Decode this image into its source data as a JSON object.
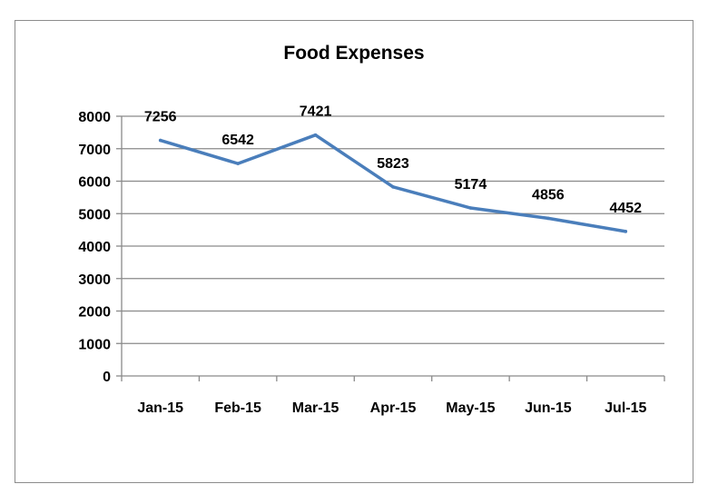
{
  "chart_data": {
    "type": "line",
    "title": "Food Expenses",
    "xlabel": "",
    "ylabel": "",
    "categories": [
      "Jan-15",
      "Feb-15",
      "Mar-15",
      "Apr-15",
      "May-15",
      "Jun-15",
      "Jul-15"
    ],
    "series": [
      {
        "values": [
          7256,
          6542,
          7421,
          5823,
          5174,
          4856,
          4452
        ],
        "color": "#4a7ebb"
      }
    ],
    "data_labels": [
      "7256",
      "6542",
      "7421",
      "5823",
      "5174",
      "4856",
      "4452"
    ],
    "ylim": [
      0,
      8000
    ],
    "yticks": [
      "0",
      "1000",
      "2000",
      "3000",
      "4000",
      "5000",
      "6000",
      "7000",
      "8000"
    ],
    "grid": true,
    "legend": "none"
  }
}
